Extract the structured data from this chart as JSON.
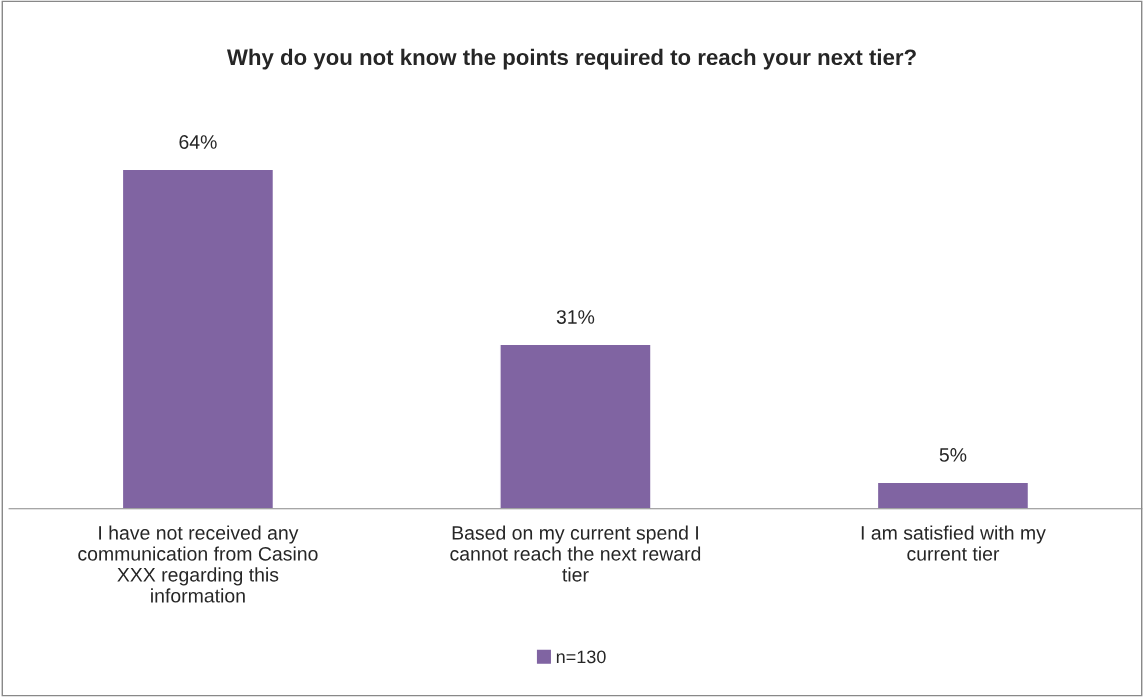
{
  "chart_data": {
    "type": "bar",
    "title": "Why do you not know the points required to reach your next tier?",
    "categories": [
      "I have not received any communication from Casino XXX regarding this information",
      "Based on my current spend I cannot reach the next reward tier",
      "I am satisfied with my current tier"
    ],
    "series": [
      {
        "name": "n=130",
        "color": "#8064a2",
        "values": [
          64,
          31,
          5
        ],
        "value_labels": [
          "64%",
          "31%",
          "5%"
        ]
      }
    ],
    "legend": "bottom",
    "grid": false,
    "tick_labels": "x"
  }
}
